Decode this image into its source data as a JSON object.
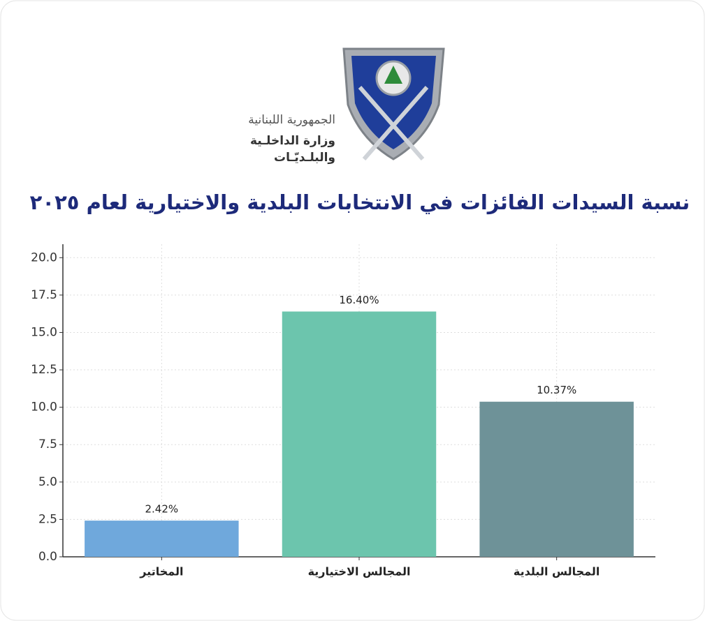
{
  "header": {
    "line1": "الجمهورية اللبنانية",
    "line2": "وزارة الداخلـية",
    "line3": "والبلـديّـات"
  },
  "chart_data": {
    "type": "bar",
    "title": "نسبة السيدات الفائزات في الانتخابات البلدية والاختيارية لعام ٢٠٢٥",
    "categories": [
      "المخاتير",
      "المجالس الاختيارية",
      "المجالس البلدية"
    ],
    "values": [
      2.42,
      16.4,
      10.37
    ],
    "value_labels": [
      "2.42%",
      "16.40%",
      "10.37%"
    ],
    "colors": [
      "#6fa8dc",
      "#6cc5ad",
      "#6e9298"
    ],
    "ylim": [
      0,
      20.9
    ],
    "yticks": [
      {
        "value": 0,
        "label": "0.0"
      },
      {
        "value": 2.5,
        "label": "2.5"
      },
      {
        "value": 5,
        "label": "5.0"
      },
      {
        "value": 7.5,
        "label": "7.5"
      },
      {
        "value": 10,
        "label": "10.0"
      },
      {
        "value": 12.5,
        "label": "12.5"
      },
      {
        "value": 15,
        "label": "15.0"
      },
      {
        "value": 17.5,
        "label": "17.5"
      },
      {
        "value": 20,
        "label": "20.0"
      }
    ],
    "grid": true
  }
}
